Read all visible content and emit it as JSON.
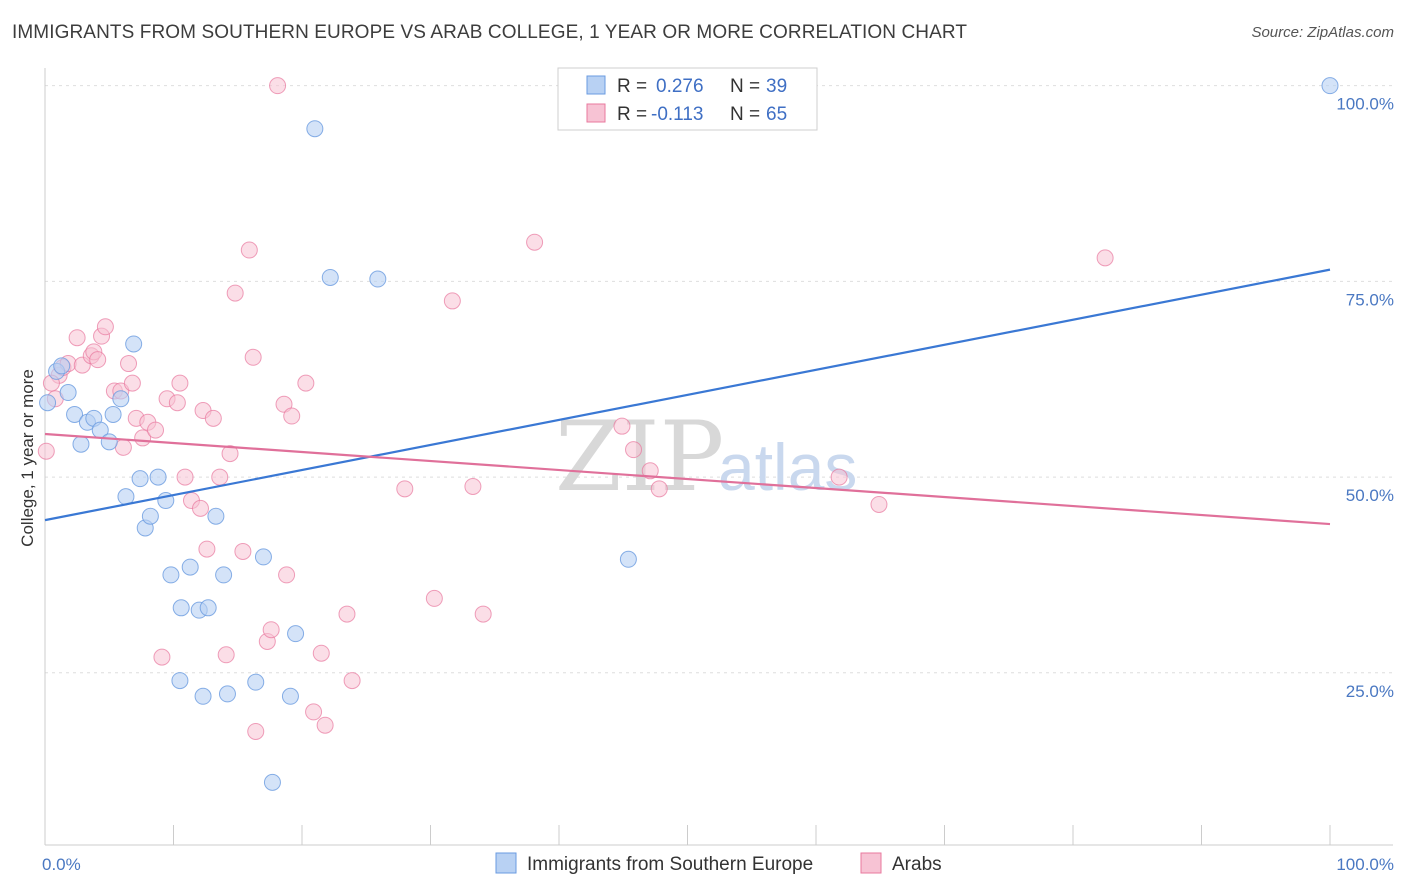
{
  "title": "IMMIGRANTS FROM SOUTHERN EUROPE VS ARAB COLLEGE, 1 YEAR OR MORE CORRELATION CHART",
  "source": "Source: ZipAtlas.com",
  "colors": {
    "blue": "#6a9be0",
    "blue_fill": "#b8d1f3",
    "pink": "#e8789e",
    "pink_fill": "#f7c3d4",
    "blue_line": "#3a78d4",
    "pink_line": "#e0709a"
  },
  "chart_data": {
    "type": "scatter",
    "title": "IMMIGRANTS FROM SOUTHERN EUROPE VS ARAB COLLEGE, 1 YEAR OR MORE CORRELATION CHART",
    "xlabel": "",
    "ylabel": "College, 1 year or more",
    "xlim": [
      0,
      100
    ],
    "ylim": [
      3,
      102
    ],
    "x_tick_labels": [
      "0.0%",
      "100.0%"
    ],
    "y_ticks": [
      25,
      50,
      75,
      100
    ],
    "y_tick_labels": [
      "25.0%",
      "50.0%",
      "75.0%",
      "100.0%"
    ],
    "watermark": {
      "zip": "ZIP",
      "atlas": "atlas"
    },
    "legend": {
      "rows": [
        {
          "r_label": "R =",
          "r_value": "0.276",
          "n_label": "N =",
          "n_value": "39"
        },
        {
          "r_label": "R =",
          "r_value": "-0.113",
          "n_label": "N =",
          "n_value": "65"
        }
      ]
    },
    "series": [
      {
        "name": "Immigrants from Southern Europe",
        "trend": [
          [
            0,
            44.5
          ],
          [
            100,
            76.5
          ]
        ],
        "points": [
          [
            0.2,
            59.5
          ],
          [
            0.9,
            63.5
          ],
          [
            1.3,
            64.2
          ],
          [
            1.8,
            60.8
          ],
          [
            2.3,
            58.0
          ],
          [
            2.8,
            54.2
          ],
          [
            3.3,
            57.0
          ],
          [
            3.8,
            57.5
          ],
          [
            4.3,
            56.0
          ],
          [
            5.0,
            54.5
          ],
          [
            5.3,
            58.0
          ],
          [
            5.9,
            60.0
          ],
          [
            6.9,
            67.0
          ],
          [
            6.3,
            47.5
          ],
          [
            7.4,
            49.8
          ],
          [
            7.8,
            43.5
          ],
          [
            8.2,
            45.0
          ],
          [
            8.8,
            50.0
          ],
          [
            9.4,
            47.0
          ],
          [
            9.8,
            37.5
          ],
          [
            10.5,
            24.0
          ],
          [
            10.6,
            33.3
          ],
          [
            11.3,
            38.5
          ],
          [
            12.0,
            33.0
          ],
          [
            12.3,
            22.0
          ],
          [
            12.7,
            33.3
          ],
          [
            13.3,
            45.0
          ],
          [
            13.9,
            37.5
          ],
          [
            14.2,
            22.3
          ],
          [
            16.4,
            23.8
          ],
          [
            17.0,
            39.8
          ],
          [
            17.7,
            11.0
          ],
          [
            19.1,
            22.0
          ],
          [
            19.5,
            30.0
          ],
          [
            21.0,
            94.5
          ],
          [
            22.2,
            75.5
          ],
          [
            25.9,
            75.3
          ],
          [
            45.4,
            39.5
          ],
          [
            100.0,
            100.0
          ]
        ]
      },
      {
        "name": "Arabs",
        "trend": [
          [
            0,
            55.5
          ],
          [
            100,
            44.0
          ]
        ],
        "points": [
          [
            0.1,
            53.3
          ],
          [
            0.8,
            60.0
          ],
          [
            1.1,
            63.0
          ],
          [
            1.4,
            64.0
          ],
          [
            1.8,
            64.5
          ],
          [
            2.5,
            67.8
          ],
          [
            2.9,
            64.3
          ],
          [
            3.6,
            65.5
          ],
          [
            3.8,
            66.0
          ],
          [
            4.1,
            65.0
          ],
          [
            4.4,
            68.0
          ],
          [
            4.7,
            69.2
          ],
          [
            5.4,
            61.0
          ],
          [
            5.9,
            61.0
          ],
          [
            6.1,
            53.8
          ],
          [
            6.5,
            64.5
          ],
          [
            6.8,
            62.0
          ],
          [
            7.1,
            57.5
          ],
          [
            7.6,
            55.0
          ],
          [
            8.0,
            57.0
          ],
          [
            8.6,
            56.0
          ],
          [
            9.1,
            27.0
          ],
          [
            9.5,
            60.0
          ],
          [
            10.3,
            59.5
          ],
          [
            10.5,
            62.0
          ],
          [
            10.9,
            50.0
          ],
          [
            11.4,
            47.0
          ],
          [
            12.1,
            46.0
          ],
          [
            12.3,
            58.5
          ],
          [
            12.6,
            40.8
          ],
          [
            13.1,
            57.5
          ],
          [
            13.6,
            50.0
          ],
          [
            14.1,
            27.3
          ],
          [
            14.4,
            53.0
          ],
          [
            14.8,
            73.5
          ],
          [
            15.4,
            40.5
          ],
          [
            15.9,
            79.0
          ],
          [
            16.2,
            65.3
          ],
          [
            16.4,
            17.5
          ],
          [
            17.3,
            29.0
          ],
          [
            17.6,
            30.5
          ],
          [
            18.1,
            100.0
          ],
          [
            18.6,
            59.3
          ],
          [
            18.8,
            37.5
          ],
          [
            19.2,
            57.8
          ],
          [
            20.3,
            62.0
          ],
          [
            20.9,
            20.0
          ],
          [
            21.5,
            27.5
          ],
          [
            21.8,
            18.3
          ],
          [
            23.5,
            32.5
          ],
          [
            23.9,
            24.0
          ],
          [
            28.0,
            48.5
          ],
          [
            30.3,
            34.5
          ],
          [
            31.7,
            72.5
          ],
          [
            33.3,
            48.8
          ],
          [
            34.1,
            32.5
          ],
          [
            38.1,
            80.0
          ],
          [
            44.9,
            56.5
          ],
          [
            45.8,
            53.5
          ],
          [
            47.1,
            50.8
          ],
          [
            47.8,
            48.5
          ],
          [
            61.8,
            50.0
          ],
          [
            64.9,
            46.5
          ],
          [
            82.5,
            78.0
          ],
          [
            0.5,
            62.0
          ]
        ]
      }
    ]
  }
}
